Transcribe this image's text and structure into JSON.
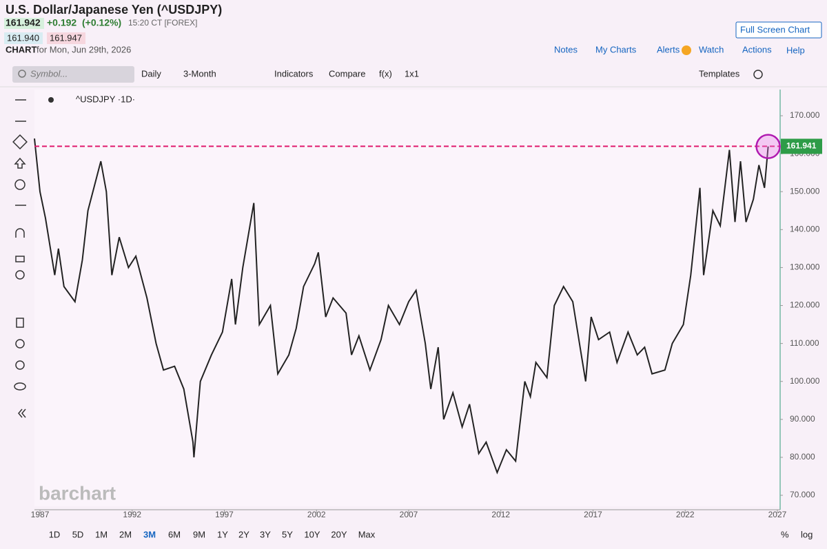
{
  "header": {
    "title": "U.S. Dollar/Japanese Yen (^USDJPY)",
    "last": "161.942",
    "change": "+0.192",
    "change_pct": "(+0.12%)",
    "time": "15:20 CT [FOREX]",
    "bid": "161.940",
    "ask": "161.947",
    "chart_label": "CHART",
    "date": "for Mon, Jun 29th, 2026",
    "full_screen": "Full Screen Chart"
  },
  "menu": [
    "Notes",
    "My Charts",
    "Alerts",
    "Watch",
    "Actions",
    "Help"
  ],
  "toolbar": {
    "search": "Symbol...",
    "items": [
      "Daily",
      "3-Month",
      "Indicators",
      "Compare",
      "f(x)",
      "1x1"
    ],
    "templates": "Templates"
  },
  "legend": "^USDJPY ·1D·",
  "watermark": "barchart",
  "ranges": [
    "1D",
    "5D",
    "1M",
    "2M",
    "3M",
    "6M",
    "9M",
    "1Y",
    "2Y",
    "3Y",
    "5Y",
    "10Y",
    "20Y",
    "Max"
  ],
  "selected_range": "3M",
  "scale_buttons": [
    "%",
    "log"
  ],
  "chart_data": {
    "type": "line",
    "color": "#222222",
    "x": [
      1986.7,
      1987.0,
      1987.3,
      1987.8,
      1988.0,
      1988.3,
      1988.9,
      1989.3,
      1989.6,
      1990.3,
      1990.6,
      1990.9,
      1991.3,
      1991.8,
      1992.2,
      1992.8,
      1993.3,
      1993.7,
      1994.3,
      1994.8,
      1995.3,
      1995.35,
      1995.7,
      1996.3,
      1996.9,
      1997.4,
      1997.6,
      1998.0,
      1998.6,
      1998.9,
      1999.5,
      1999.9,
      2000.5,
      2000.9,
      2001.3,
      2001.9,
      2002.1,
      2002.5,
      2002.9,
      2003.6,
      2003.9,
      2004.3,
      2004.9,
      2005.5,
      2005.9,
      2006.5,
      2007.0,
      2007.4,
      2007.9,
      2008.2,
      2008.6,
      2008.9,
      2009.4,
      2009.9,
      2010.3,
      2010.8,
      2011.2,
      2011.8,
      2012.3,
      2012.8,
      2013.3,
      2013.6,
      2013.9,
      2014.5,
      2014.9,
      2015.4,
      2015.9,
      2016.4,
      2016.6,
      2016.9,
      2017.3,
      2017.9,
      2018.3,
      2018.9,
      2019.4,
      2019.8,
      2020.2,
      2020.9,
      2021.3,
      2021.9,
      2022.3,
      2022.8,
      2023.0,
      2023.5,
      2023.9,
      2024.4,
      2024.7,
      2025.0,
      2025.3,
      2025.7,
      2026.0,
      2026.3,
      2026.5
    ],
    "values": [
      164,
      150,
      143,
      128,
      135,
      125,
      121,
      132,
      145,
      158,
      150,
      128,
      138,
      130,
      133,
      122,
      110,
      103,
      104,
      98,
      84,
      80,
      100,
      107,
      113,
      127,
      115,
      130,
      147,
      115,
      120,
      102,
      107,
      114,
      125,
      131,
      134,
      117,
      122,
      118,
      107,
      112,
      103,
      111,
      120,
      115,
      121,
      124,
      110,
      98,
      109,
      90,
      97,
      88,
      94,
      81,
      84,
      76,
      82,
      79,
      100,
      96,
      105,
      101,
      120,
      125,
      121,
      106,
      100,
      117,
      111,
      113,
      105,
      113,
      107,
      109,
      102,
      103,
      110,
      115,
      128,
      151,
      128,
      145,
      141,
      161,
      142,
      158,
      142,
      148,
      157,
      151,
      161.9
    ],
    "last_price": {
      "value": 161.941,
      "label": "161.941"
    },
    "xlim": [
      1986.7,
      2027.15
    ],
    "ylim": [
      67.1,
      176.9
    ],
    "xticks": [
      1987,
      1992,
      1997,
      2002,
      2007,
      2012,
      2017,
      2022,
      2027
    ],
    "yticks": [
      {
        "value": 70,
        "label": "70.000"
      },
      {
        "value": 80,
        "label": "80.000"
      },
      {
        "value": 90,
        "label": "90.000"
      },
      {
        "value": 100,
        "label": "100.000"
      },
      {
        "value": 110,
        "label": "110.000"
      },
      {
        "value": 120,
        "label": "120.000"
      },
      {
        "value": 130,
        "label": "130.000"
      },
      {
        "value": 140,
        "label": "140.000"
      },
      {
        "value": 150,
        "label": "150.000"
      },
      {
        "value": 160,
        "label": "160.000"
      },
      {
        "value": 170,
        "label": "170.000"
      }
    ]
  }
}
